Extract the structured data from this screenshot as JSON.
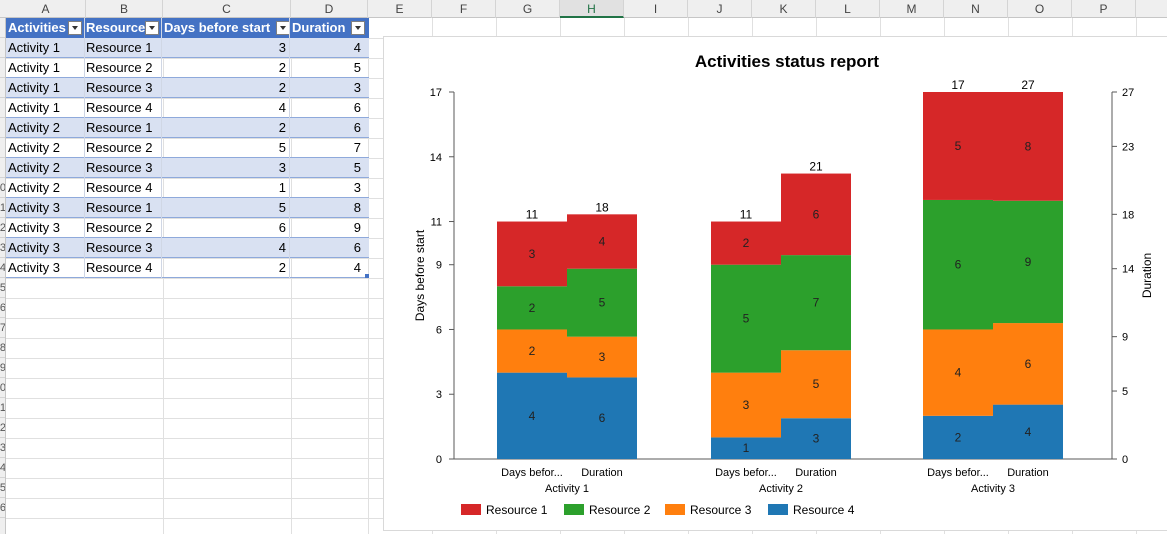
{
  "columns": [
    "A",
    "B",
    "C",
    "D",
    "E",
    "F",
    "G",
    "H",
    "I",
    "J",
    "K",
    "L",
    "M",
    "N",
    "O",
    "P"
  ],
  "selected_column": "H",
  "row_numbers": [
    "",
    "",
    "",
    "",
    "",
    "",
    "",
    "",
    "0",
    "1",
    "2",
    "3",
    "4",
    "5",
    "6",
    "7",
    "8",
    "9",
    "0",
    "1",
    "2",
    "3",
    "4",
    "5",
    "6"
  ],
  "table": {
    "headers": [
      "Activities",
      "Resource",
      "Days before start",
      "Duration"
    ],
    "rows": [
      [
        "Activity 1",
        "Resource 1",
        "3",
        "4"
      ],
      [
        "Activity 1",
        "Resource 2",
        "2",
        "5"
      ],
      [
        "Activity 1",
        "Resource 3",
        "2",
        "3"
      ],
      [
        "Activity 1",
        "Resource 4",
        "4",
        "6"
      ],
      [
        "Activity 2",
        "Resource 1",
        "2",
        "6"
      ],
      [
        "Activity 2",
        "Resource 2",
        "5",
        "7"
      ],
      [
        "Activity 2",
        "Resource 3",
        "3",
        "5"
      ],
      [
        "Activity 2",
        "Resource 4",
        "1",
        "3"
      ],
      [
        "Activity 3",
        "Resource 1",
        "5",
        "8"
      ],
      [
        "Activity 3",
        "Resource 2",
        "6",
        "9"
      ],
      [
        "Activity 3",
        "Resource 3",
        "4",
        "6"
      ],
      [
        "Activity 3",
        "Resource 4",
        "2",
        "4"
      ]
    ]
  },
  "chart_data": {
    "type": "bar",
    "stacked": true,
    "title": "Activities status report",
    "ylabel": "Days before start",
    "y2label": "Duration",
    "ylim": [
      0,
      17
    ],
    "y2lim": [
      0,
      27
    ],
    "yticks": [
      "0",
      "3",
      "6",
      "9",
      "11",
      "14",
      "17"
    ],
    "y2ticks": [
      "0",
      "5",
      "9",
      "14",
      "18",
      "23",
      "27"
    ],
    "groups": [
      "Activity 1",
      "Activity 2",
      "Activity 3"
    ],
    "bar_labels": [
      "Days befor...",
      "Duration"
    ],
    "series": [
      {
        "name": "Resource 4",
        "color": "#1f77b4",
        "days": [
          4,
          1,
          2
        ],
        "duration": [
          6,
          3,
          4
        ]
      },
      {
        "name": "Resource 3",
        "color": "#ff7f0e",
        "days": [
          2,
          3,
          4
        ],
        "duration": [
          3,
          5,
          6
        ]
      },
      {
        "name": "Resource 2",
        "color": "#2ca02c",
        "days": [
          2,
          5,
          6
        ],
        "duration": [
          5,
          7,
          9
        ]
      },
      {
        "name": "Resource 1",
        "color": "#d62728",
        "days": [
          3,
          2,
          5
        ],
        "duration": [
          4,
          6,
          8
        ]
      }
    ],
    "totals": {
      "days": [
        11,
        11,
        17
      ],
      "duration": [
        18,
        21,
        27
      ]
    },
    "legend_order": [
      "Resource 1",
      "Resource 2",
      "Resource 3",
      "Resource 4"
    ],
    "legend_position": "bottom",
    "grid": false
  }
}
